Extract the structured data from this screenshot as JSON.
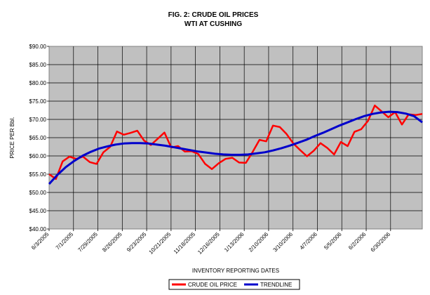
{
  "chart_data": {
    "type": "line",
    "title": "FIG. 2:  CRUDE OIL PRICES",
    "subtitle": "WTI AT CUSHING",
    "xlabel": "INVENTORY REPORTING DATES",
    "ylabel": "PRICE PER Bbl.",
    "ylim": [
      40,
      90
    ],
    "y_ticks": [
      "$40.00",
      "$45.00",
      "$50.00",
      "$55.00",
      "$60.00",
      "$65.00",
      "$70.00",
      "$75.00",
      "$80.00",
      "$85.00",
      "$90.00"
    ],
    "x_tick_labels": [
      "6/3/2005",
      "7/1/2005",
      "7/29/2005",
      "8/26/2005",
      "9/23/2005",
      "10/21/2005",
      "11/18/2005",
      "12/16/2005",
      "1/13/2006",
      "2/10/2006",
      "3/10/2006",
      "4/7/2006",
      "5/5/2006",
      "6/2/2006",
      "6/30/2006"
    ],
    "grid": true,
    "legend_position": "bottom",
    "series": [
      {
        "name": "CRUDE OIL PRICE",
        "color": "#ff0000",
        "values": [
          55.0,
          53.7,
          58.5,
          59.8,
          59.2,
          59.8,
          58.3,
          57.8,
          61.0,
          62.5,
          66.7,
          65.8,
          66.3,
          66.9,
          64.2,
          63.0,
          64.7,
          66.4,
          62.3,
          62.7,
          61.2,
          61.3,
          60.5,
          57.8,
          56.4,
          58.0,
          59.2,
          59.5,
          58.2,
          58.1,
          61.1,
          64.4,
          64.0,
          68.3,
          67.9,
          66.0,
          63.4,
          61.6,
          59.9,
          61.4,
          63.5,
          62.2,
          60.4,
          63.8,
          62.7,
          66.6,
          67.3,
          69.6,
          73.8,
          72.2,
          70.6,
          72.0,
          68.6,
          71.4,
          71.2,
          71.5
        ]
      },
      {
        "name": "TRENDLINE",
        "color": "#0000cc",
        "values": [
          52.3,
          54.8,
          56.9,
          58.6,
          60.0,
          61.1,
          62.0,
          62.6,
          63.1,
          63.4,
          63.5,
          63.5,
          63.4,
          63.1,
          62.8,
          62.4,
          62.0,
          61.6,
          61.2,
          60.9,
          60.6,
          60.4,
          60.3,
          60.3,
          60.4,
          60.7,
          61.0,
          61.5,
          62.1,
          62.8,
          63.6,
          64.4,
          65.4,
          66.3,
          67.3,
          68.3,
          69.2,
          70.1,
          70.9,
          71.5,
          71.9,
          72.1,
          72.0,
          71.6,
          70.9,
          69.2
        ]
      }
    ]
  }
}
